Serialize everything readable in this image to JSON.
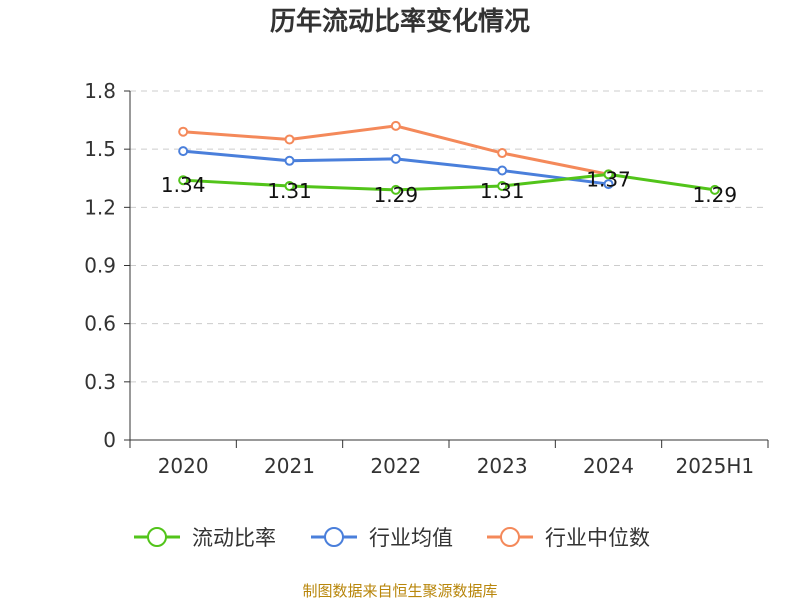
{
  "chart_data": {
    "type": "line",
    "title": "历年流动比率变化情况",
    "categories": [
      "2020",
      "2021",
      "2022",
      "2023",
      "2024",
      "2025H1"
    ],
    "y_ticks": [
      "0",
      "0.3",
      "0.6",
      "0.9",
      "1.2",
      "1.5",
      "1.8"
    ],
    "ylim": [
      0,
      1.8
    ],
    "grid": true,
    "legend_position": "bottom",
    "series": [
      {
        "name": "流动比率",
        "color": "#52c41a",
        "values": [
          1.34,
          1.31,
          1.29,
          1.31,
          1.37,
          1.29
        ],
        "labels": [
          "1.34",
          "1.31",
          "1.29",
          "1.31",
          "1.37",
          "1.29"
        ],
        "show_labels": true
      },
      {
        "name": "行业均值",
        "color": "#4a7fdb",
        "values": [
          1.49,
          1.44,
          1.45,
          1.39,
          1.32,
          null
        ],
        "show_labels": false
      },
      {
        "name": "行业中位数",
        "color": "#f4895a",
        "values": [
          1.59,
          1.55,
          1.62,
          1.48,
          1.37,
          null
        ],
        "show_labels": false
      }
    ]
  },
  "source": "制图数据来自恒生聚源数据库"
}
